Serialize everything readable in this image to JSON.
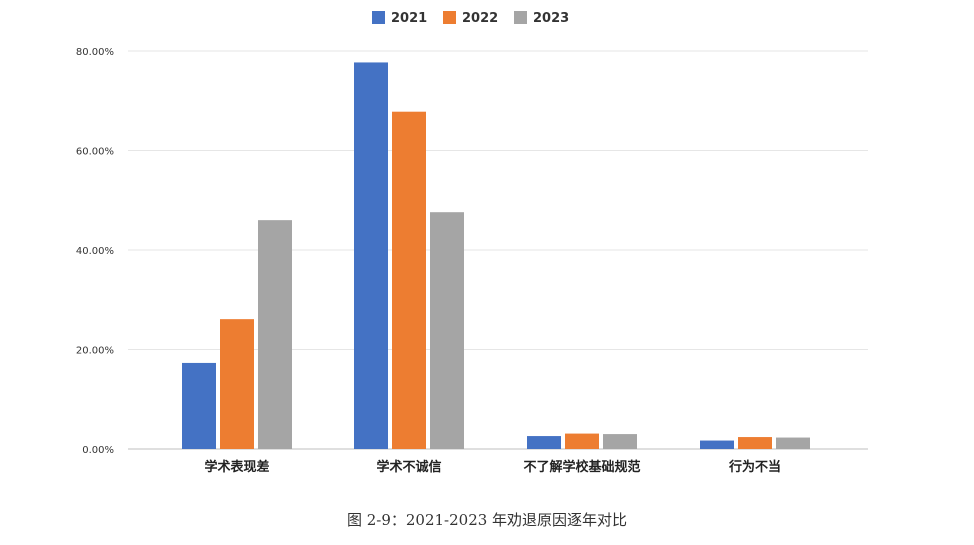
{
  "chart_data": {
    "type": "bar",
    "title": "",
    "xlabel": "",
    "ylabel": "",
    "categories": [
      "学术表现差",
      "学术不诚信",
      "不了解学校基础规范",
      "行为不当"
    ],
    "series": [
      {
        "name": "2021",
        "color": "#4472C4",
        "values": [
          17.3,
          77.7,
          2.6,
          1.7
        ]
      },
      {
        "name": "2022",
        "color": "#ED7D31",
        "values": [
          26.1,
          67.8,
          3.1,
          2.4
        ]
      },
      {
        "name": "2023",
        "color": "#A5A5A5",
        "values": [
          46.0,
          47.6,
          3.0,
          2.3
        ]
      }
    ],
    "ylim": [
      0,
      80
    ],
    "yticks": [
      0,
      20,
      40,
      60,
      80
    ],
    "ytick_labels": [
      "0.00%",
      "20.00%",
      "40.00%",
      "60.00%",
      "80.00%"
    ],
    "grid": true,
    "legend_position": "top-center"
  },
  "caption": "图 2-9：2021-2023 年劝退原因逐年对比"
}
